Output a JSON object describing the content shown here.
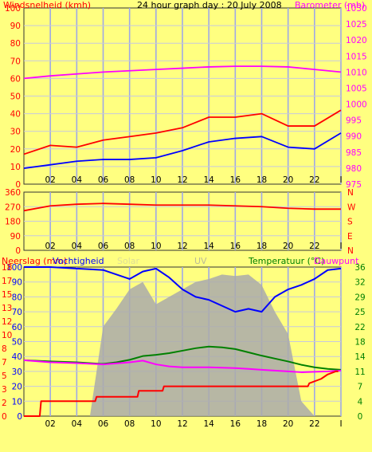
{
  "chart_data": [
    {
      "type": "line",
      "title": "24 hour graph day : 20 July 2008",
      "left_axis_label": "Windsnelheid (kmh)",
      "right_axis_label": "Barometer (mb)",
      "x_ticks": [
        "02",
        "04",
        "06",
        "08",
        "10",
        "12",
        "14",
        "16",
        "18",
        "20",
        "22",
        "I"
      ],
      "left_ticks": [
        "0",
        "10",
        "20",
        "30",
        "40",
        "50",
        "60",
        "70",
        "80",
        "90",
        "100"
      ],
      "right_ticks": [
        "975",
        "980",
        "985",
        "990",
        "995",
        "1000",
        "1005",
        "1010",
        "1015",
        "1020",
        "1025",
        "1030"
      ],
      "ylim_left": [
        0,
        100
      ],
      "ylim_right": [
        975,
        1030
      ],
      "series": [
        {
          "color": "#ff00ff",
          "axis": "right",
          "x": [
            0,
            2,
            4,
            6,
            8,
            10,
            12,
            14,
            16,
            18,
            20,
            22,
            24
          ],
          "values": [
            1008,
            1008.8,
            1009.4,
            1010,
            1010.4,
            1010.8,
            1011.2,
            1011.6,
            1011.8,
            1011.8,
            1011.6,
            1010.8,
            1010
          ]
        },
        {
          "color": "#ff0000",
          "axis": "left",
          "x": [
            0,
            2,
            4,
            6,
            8,
            10,
            12,
            14,
            16,
            18,
            20,
            22,
            24
          ],
          "values": [
            17,
            22,
            21,
            25,
            27,
            29,
            32,
            38,
            38,
            40,
            33,
            33,
            42
          ]
        },
        {
          "color": "#0000ff",
          "axis": "left",
          "x": [
            0,
            2,
            4,
            6,
            8,
            10,
            12,
            14,
            16,
            18,
            20,
            22,
            24
          ],
          "values": [
            9,
            11,
            13,
            14,
            14,
            15,
            19,
            24,
            26,
            27,
            21,
            20,
            29
          ]
        }
      ]
    },
    {
      "type": "line",
      "right_axis_label": [
        "N",
        "W",
        "S",
        "E",
        "N"
      ],
      "left_ticks": [
        "360",
        "270",
        "180",
        "90",
        "0"
      ],
      "x_ticks": [
        "02",
        "04",
        "06",
        "08",
        "10",
        "12",
        "14",
        "16",
        "18",
        "20",
        "22",
        "I"
      ],
      "ylim_left": [
        0,
        360
      ],
      "series": [
        {
          "color": "#ff0000",
          "x": [
            0,
            2,
            4,
            6,
            8,
            10,
            12,
            14,
            16,
            18,
            20,
            22,
            24
          ],
          "values": [
            245,
            275,
            285,
            290,
            285,
            280,
            280,
            280,
            275,
            270,
            260,
            255,
            255
          ]
        }
      ]
    },
    {
      "type": "line",
      "left_axis_label": "Neerslag (mm)",
      "series_labels": [
        "Vochtigheid",
        "Solar",
        "UV"
      ],
      "right_axis_label": "Temperatuur (°C)",
      "right_axis_label2": "Dauwpunt",
      "left_ticks_inner": [
        "0",
        "10",
        "20",
        "30",
        "40",
        "50",
        "60",
        "70",
        "80",
        "90",
        "100"
      ],
      "left_ticks_outer": [
        "0",
        "2",
        "3",
        "5",
        "7",
        "8",
        "10",
        "12",
        "13",
        "15",
        "17",
        "18"
      ],
      "right_ticks": [
        "0",
        "4",
        "7",
        "11",
        "14",
        "18",
        "22",
        "25",
        "29",
        "32",
        "36"
      ],
      "x_ticks": [
        "02",
        "04",
        "06",
        "08",
        "10",
        "12",
        "14",
        "16",
        "18",
        "20",
        "22",
        "I"
      ],
      "ylim_left": [
        0,
        100
      ],
      "ylim_right": [
        0,
        36
      ],
      "series": [
        {
          "color": "#aaaaaa",
          "axis": "left",
          "x": [
            0,
            5,
            6,
            7,
            8,
            9,
            10,
            11,
            12,
            13,
            14,
            15,
            16,
            17,
            18,
            19,
            20,
            21,
            22,
            24
          ],
          "values": [
            0,
            0,
            60,
            72,
            85,
            90,
            75,
            80,
            85,
            90,
            92,
            95,
            94,
            95,
            88,
            70,
            55,
            10,
            0,
            0
          ]
        },
        {
          "color": "#0000ff",
          "axis": "left",
          "x": [
            0,
            2,
            4,
            6,
            8,
            9,
            10,
            11,
            12,
            13,
            14,
            15,
            16,
            17,
            18,
            19,
            20,
            21,
            22,
            23,
            24
          ],
          "values": [
            100,
            100,
            99,
            98,
            92,
            97,
            99,
            93,
            85,
            80,
            78,
            74,
            70,
            72,
            70,
            80,
            85,
            88,
            92,
            98,
            99
          ]
        },
        {
          "color": "#008000",
          "axis": "right",
          "x": [
            0,
            2,
            4,
            6,
            7,
            8,
            9,
            10,
            11,
            12,
            13,
            14,
            15,
            16,
            17,
            18,
            19,
            20,
            21,
            22,
            23,
            24
          ],
          "values": [
            13.5,
            13.2,
            13.0,
            12.6,
            13.0,
            13.6,
            14.5,
            14.8,
            15.2,
            15.8,
            16.4,
            16.8,
            16.6,
            16.2,
            15.4,
            14.6,
            13.9,
            13.2,
            12.4,
            11.8,
            11.4,
            11.2
          ]
        },
        {
          "color": "#ff00ff",
          "axis": "right",
          "x": [
            0,
            2,
            4,
            6,
            8,
            9,
            10,
            11,
            12,
            13,
            14,
            15,
            16,
            17,
            18,
            19,
            20,
            21,
            22,
            23,
            24
          ],
          "values": [
            13.5,
            13,
            12.8,
            12.5,
            13,
            13.4,
            12.5,
            12,
            11.8,
            11.8,
            11.8,
            11.7,
            11.6,
            11.4,
            11.2,
            11.0,
            10.8,
            10.6,
            10.7,
            10.8,
            11.0
          ]
        },
        {
          "color": "#ff0000",
          "axis": "left",
          "x": [
            0,
            1.2,
            1.3,
            5.4,
            5.5,
            8.6,
            8.7,
            10.5,
            10.6,
            21.5,
            21.6,
            22.5,
            23.0,
            23.6,
            23.8
          ],
          "values": [
            0,
            0,
            10,
            10,
            13,
            13,
            17,
            17,
            20,
            20,
            22,
            25,
            28,
            30,
            30
          ]
        }
      ]
    }
  ]
}
